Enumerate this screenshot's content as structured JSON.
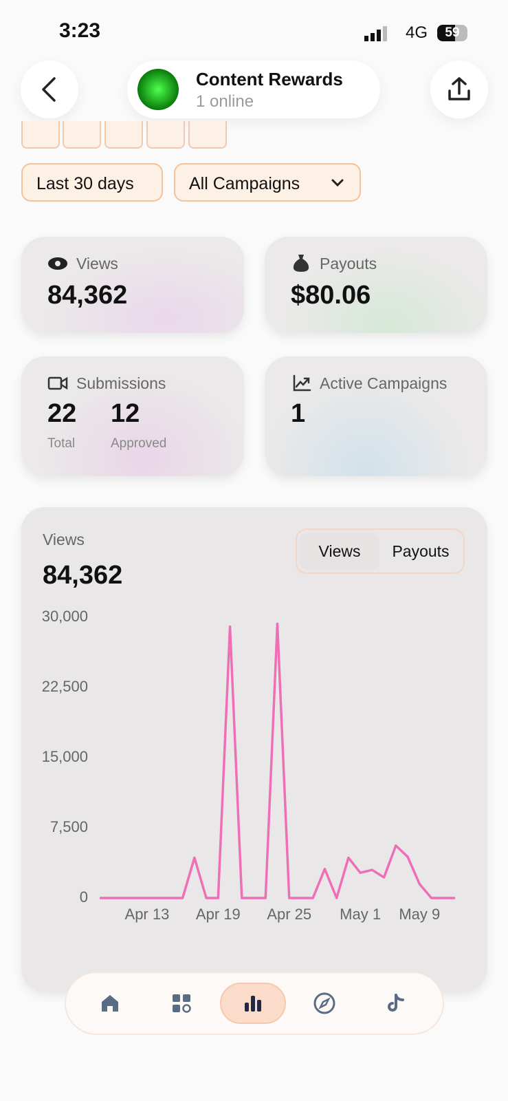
{
  "status_bar": {
    "time": "3:23",
    "network": "4G",
    "battery": "59"
  },
  "header": {
    "title": "Content Rewards",
    "subtitle": "1 online"
  },
  "filters": [
    "Last 30 days",
    "All Campaigns"
  ],
  "stats": {
    "views": {
      "label": "Views",
      "value": "84,362"
    },
    "payouts": {
      "label": "Payouts",
      "value": "$80.06"
    },
    "submissions": {
      "label": "Submissions",
      "total": "22",
      "total_label": "Total",
      "approved": "12",
      "approved_label": "Approved"
    },
    "active_campaigns": {
      "label": "Active Campaigns",
      "value": "1"
    }
  },
  "chart_card": {
    "label": "Views",
    "value": "84,362",
    "toggle": [
      "Views",
      "Payouts"
    ]
  },
  "chart_data": {
    "type": "line",
    "categories": [
      null,
      null,
      null,
      null,
      "Apr 13",
      null,
      null,
      null,
      null,
      null,
      "Apr 19",
      null,
      null,
      null,
      null,
      null,
      "Apr 25",
      null,
      null,
      null,
      null,
      null,
      "May 1",
      null,
      null,
      null,
      null,
      "May 9",
      null,
      null,
      null
    ],
    "series": [
      {
        "name": "Views",
        "color": "#ee6fb5",
        "values": [
          0,
          0,
          0,
          0,
          0,
          0,
          0,
          0,
          4300,
          0,
          0,
          29000,
          0,
          0,
          0,
          29300,
          0,
          0,
          0,
          3100,
          0,
          4300,
          2700,
          3000,
          2200,
          5600,
          4400,
          1500,
          0,
          0,
          0
        ]
      }
    ],
    "ylim": [
      0,
      30000
    ],
    "yticks": [
      0,
      {
        "value": 7500,
        "label": "7,500"
      },
      {
        "value": 15000,
        "label": "15,000"
      },
      {
        "value": 22500,
        "label": "22,500"
      },
      {
        "value": 30000,
        "label": "30,000"
      }
    ]
  }
}
